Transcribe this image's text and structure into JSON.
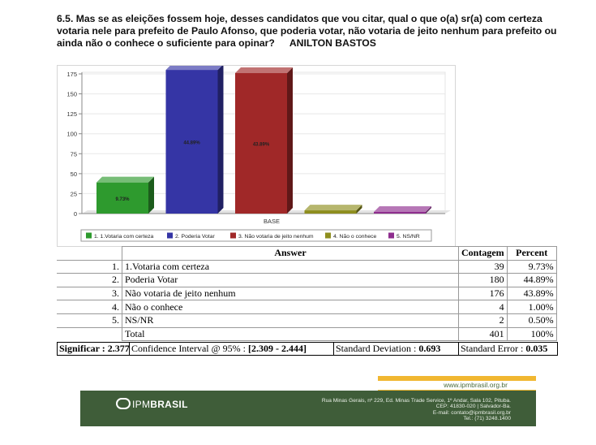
{
  "question": {
    "text": "6.5. Mas se as eleições fossem hoje, desses candidatos que vou citar, qual o que o(a) sr(a) com certeza votaria nele  para prefeito de Paulo Afonso, que poderia votar, não votaria de jeito nenhum para prefeito ou ainda não o conhece o suficiente para opinar?",
    "candidate": "ANILTON BASTOS"
  },
  "chart_data": {
    "type": "bar",
    "categories": [
      "BASE"
    ],
    "series": [
      {
        "name": "1. 1.Votaria com certeza",
        "value": 39,
        "label": "9.73%",
        "color": "#2e9a2e"
      },
      {
        "name": "2. Poderia Votar",
        "value": 180,
        "label": "44.89%",
        "color": "#3535a5"
      },
      {
        "name": "3. Não votaria de jeito nenhum",
        "value": 176,
        "label": "43.89%",
        "color": "#a02828"
      },
      {
        "name": "4. Não o conhece",
        "value": 4,
        "label": "",
        "color": "#8e8e1e"
      },
      {
        "name": "5. NS/NR",
        "value": 2,
        "label": "",
        "color": "#8e2e8e"
      }
    ],
    "xlabel": "BASE",
    "ylim": [
      0,
      175
    ],
    "yticks": [
      "0",
      "25",
      "50",
      "75",
      "100",
      "125",
      "150",
      "175"
    ],
    "grid": true,
    "legend": "bottom"
  },
  "table": {
    "headers": {
      "answer": "Answer",
      "count": "Contagem",
      "percent": "Percent"
    },
    "rows": [
      {
        "idx": "1.",
        "answer": "1.Votaria com certeza",
        "count": "39",
        "percent": "9.73%"
      },
      {
        "idx": "2.",
        "answer": "Poderia Votar",
        "count": "180",
        "percent": "44.89%"
      },
      {
        "idx": "3.",
        "answer": "Não votaria de jeito nenhum",
        "count": "176",
        "percent": "43.89%"
      },
      {
        "idx": "4.",
        "answer": "Não o conhece",
        "count": "4",
        "percent": "1.00%"
      },
      {
        "idx": "5.",
        "answer": "NS/NR",
        "count": "2",
        "percent": "0.50%"
      }
    ],
    "total": {
      "label": "Total",
      "count": "401",
      "percent": "100%"
    }
  },
  "summary": {
    "significar_label": "Significar :",
    "significar_value": "2.377",
    "ci_label": "Confidence Interval @ 95% :",
    "ci_value": "[2.309 - 2.444]",
    "sd_label": "Standard Deviation :",
    "sd_value": "0.693",
    "se_label": "Standard Error :",
    "se_value": "0.035"
  },
  "footer": {
    "url": "www.ipmbrasil.org.br",
    "logo_light": "IPM",
    "logo_bold": "BRASIL",
    "address1": "Rua Minas Gerais, nº 229, Ed. Minas Trade Service, 1º Andar, Sala 102, Pituba.",
    "address2": "CEP: 41830-020 | Salvador-Ba.",
    "address3": "E-mail: contato@ipmbrasil.org.br",
    "address4": "Tel.: (71) 3248.1400"
  }
}
